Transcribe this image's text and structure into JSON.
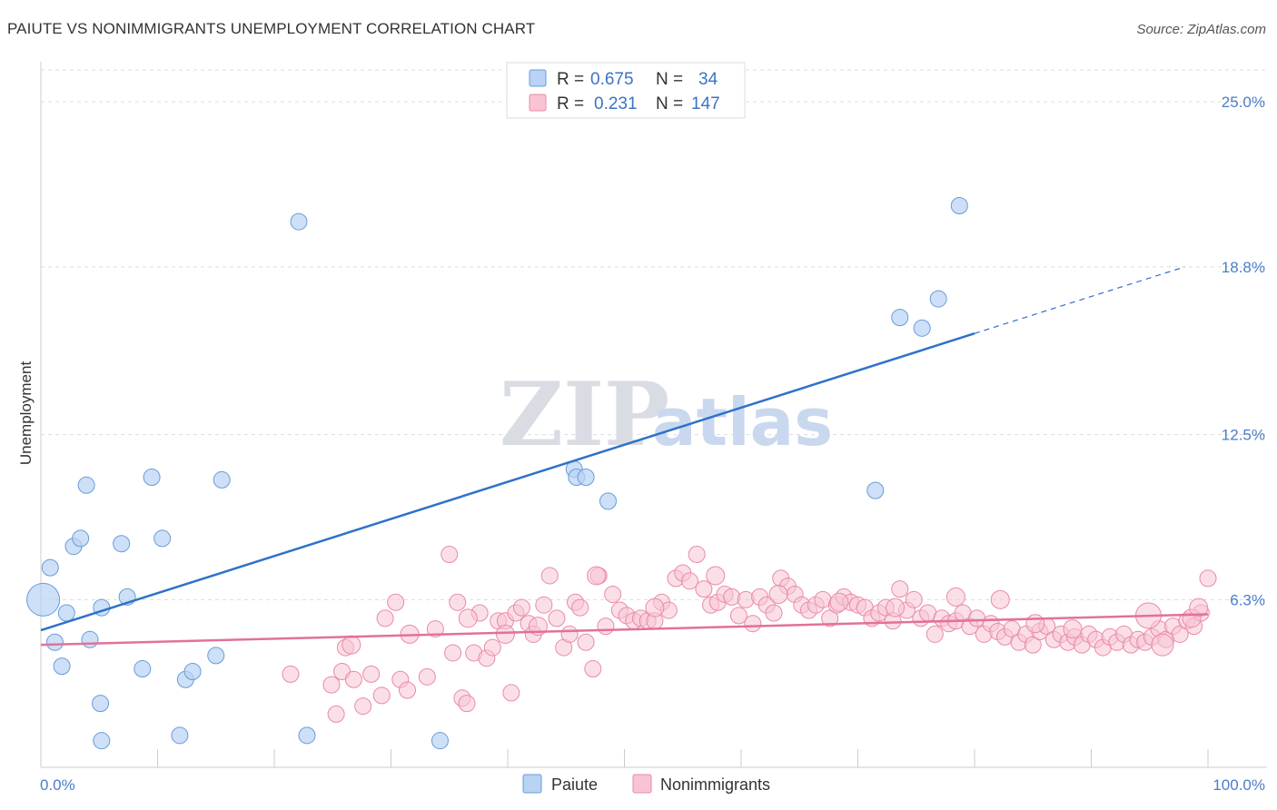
{
  "title": "PAIUTE VS NONIMMIGRANTS UNEMPLOYMENT CORRELATION CHART",
  "source": "Source: ZipAtlas.com",
  "watermark": {
    "zip": "ZIP",
    "atlas": "atlas"
  },
  "colors": {
    "paiute_fill": "#b8d3f3",
    "paiute_stroke": "#6a9bd8",
    "paiute_line": "#2e72c9",
    "nonimm_fill": "#f8c4d4",
    "nonimm_stroke": "#e98aa8",
    "nonimm_line": "#e2719a",
    "tick_color": "#4a7ec9",
    "grid": "#dddddd"
  },
  "legend": {
    "paiute": {
      "r_label": "R =",
      "r_value": "0.675",
      "n_label": "N =",
      "n_value": "34"
    },
    "nonimm": {
      "r_label": "R =",
      "r_value": "0.231",
      "n_label": "N =",
      "n_value": "147"
    }
  },
  "bottom_legend": {
    "paiute": "Paiute",
    "nonimm": "Nonimmigrants"
  },
  "chart_data": {
    "type": "scatter",
    "title": "PAIUTE VS NONIMMIGRANTS UNEMPLOYMENT CORRELATION CHART",
    "xlabel": "",
    "ylabel": "Unemployment",
    "xlim": [
      0,
      100
    ],
    "ylim": [
      0,
      26.2
    ],
    "x_tick_labels": [
      "0.0%",
      "100.0%"
    ],
    "y_ticks": [
      6.3,
      12.5,
      18.8,
      25.0
    ],
    "y_tick_labels": [
      "6.3%",
      "12.5%",
      "18.8%",
      "25.0%"
    ],
    "grid": true,
    "legend_position": "top-center",
    "series": [
      {
        "name": "Paiute",
        "points": [
          [
            0.2,
            6.3,
            18
          ],
          [
            0.8,
            7.5,
            9
          ],
          [
            1.2,
            4.7,
            9
          ],
          [
            1.8,
            3.8,
            9
          ],
          [
            2.2,
            5.8,
            9
          ],
          [
            2.8,
            8.3,
            9
          ],
          [
            3.4,
            8.6,
            9
          ],
          [
            3.9,
            10.6,
            9
          ],
          [
            4.2,
            4.8,
            9
          ],
          [
            5.1,
            2.4,
            9
          ],
          [
            5.2,
            1.0,
            9
          ],
          [
            5.2,
            6.0,
            9
          ],
          [
            6.9,
            8.4,
            9
          ],
          [
            7.4,
            6.4,
            9
          ],
          [
            8.7,
            3.7,
            9
          ],
          [
            9.5,
            10.9,
            9
          ],
          [
            10.4,
            8.6,
            9
          ],
          [
            11.9,
            1.2,
            9
          ],
          [
            12.4,
            3.3,
            9
          ],
          [
            13.0,
            3.6,
            9
          ],
          [
            15.0,
            4.2,
            9
          ],
          [
            15.5,
            10.8,
            9
          ],
          [
            22.1,
            20.5,
            9
          ],
          [
            22.8,
            1.2,
            9
          ],
          [
            34.2,
            1.0,
            9
          ],
          [
            45.7,
            11.2,
            9
          ],
          [
            45.9,
            10.9,
            9
          ],
          [
            46.7,
            10.9,
            9
          ],
          [
            48.6,
            10.0,
            9
          ],
          [
            71.5,
            10.4,
            9
          ],
          [
            73.6,
            16.9,
            9
          ],
          [
            75.5,
            16.5,
            9
          ],
          [
            76.9,
            17.6,
            9
          ],
          [
            78.7,
            21.1,
            9
          ]
        ],
        "trend": {
          "x1": 0,
          "y1": 5.15,
          "x2": 80,
          "y2": 16.3,
          "dash_x2": 98,
          "dash_y2": 18.8
        }
      },
      {
        "name": "Nonimmigrants",
        "points": [
          [
            21.4,
            3.5,
            9
          ],
          [
            24.9,
            3.1,
            9
          ],
          [
            25.3,
            2.0,
            9
          ],
          [
            25.8,
            3.6,
            9
          ],
          [
            26.1,
            4.5,
            9
          ],
          [
            26.8,
            3.3,
            9
          ],
          [
            27.6,
            2.3,
            9
          ],
          [
            28.3,
            3.5,
            9
          ],
          [
            29.2,
            2.7,
            9
          ],
          [
            29.5,
            5.6,
            9
          ],
          [
            30.4,
            6.2,
            9
          ],
          [
            30.8,
            3.3,
            9
          ],
          [
            31.4,
            2.9,
            9
          ],
          [
            33.1,
            3.4,
            9
          ],
          [
            33.8,
            5.2,
            9
          ],
          [
            35.0,
            8.0,
            9
          ],
          [
            35.3,
            4.3,
            9
          ],
          [
            35.7,
            6.2,
            9
          ],
          [
            36.1,
            2.6,
            9
          ],
          [
            36.5,
            2.4,
            9
          ],
          [
            37.1,
            4.3,
            9
          ],
          [
            37.6,
            5.8,
            9
          ],
          [
            38.2,
            4.1,
            9
          ],
          [
            38.7,
            4.5,
            9
          ],
          [
            39.2,
            5.5,
            9
          ],
          [
            39.8,
            5.5,
            9
          ],
          [
            40.3,
            2.8,
            9
          ],
          [
            40.7,
            5.8,
            9
          ],
          [
            41.2,
            6.0,
            9
          ],
          [
            41.8,
            5.4,
            9
          ],
          [
            42.2,
            5.0,
            9
          ],
          [
            43.1,
            6.1,
            9
          ],
          [
            43.6,
            7.2,
            9
          ],
          [
            44.2,
            5.6,
            9
          ],
          [
            44.8,
            4.5,
            9
          ],
          [
            45.3,
            5.0,
            9
          ],
          [
            45.8,
            6.2,
            9
          ],
          [
            46.2,
            6.0,
            9
          ],
          [
            46.7,
            4.7,
            9
          ],
          [
            47.3,
            3.7,
            9
          ],
          [
            47.8,
            7.2,
            9
          ],
          [
            48.4,
            5.3,
            9
          ],
          [
            49.0,
            6.5,
            9
          ],
          [
            49.6,
            5.9,
            9
          ],
          [
            50.2,
            5.7,
            9
          ],
          [
            50.8,
            5.5,
            9
          ],
          [
            51.4,
            5.6,
            9
          ],
          [
            52.0,
            5.5,
            9
          ],
          [
            52.6,
            5.5,
            9
          ],
          [
            53.2,
            6.2,
            9
          ],
          [
            53.8,
            5.9,
            9
          ],
          [
            54.4,
            7.1,
            9
          ],
          [
            55.0,
            7.3,
            9
          ],
          [
            55.6,
            7.0,
            9
          ],
          [
            56.2,
            8.0,
            9
          ],
          [
            56.8,
            6.7,
            9
          ],
          [
            57.4,
            6.1,
            9
          ],
          [
            58.0,
            6.2,
            9
          ],
          [
            58.6,
            6.5,
            9
          ],
          [
            59.2,
            6.4,
            9
          ],
          [
            59.8,
            5.7,
            9
          ],
          [
            60.4,
            6.3,
            9
          ],
          [
            61.0,
            5.4,
            9
          ],
          [
            61.6,
            6.4,
            9
          ],
          [
            62.2,
            6.1,
            9
          ],
          [
            62.8,
            5.8,
            9
          ],
          [
            63.4,
            7.1,
            9
          ],
          [
            64.0,
            6.8,
            9
          ],
          [
            64.6,
            6.5,
            9
          ],
          [
            65.2,
            6.1,
            9
          ],
          [
            65.8,
            5.9,
            9
          ],
          [
            66.4,
            6.1,
            9
          ],
          [
            67.0,
            6.3,
            9
          ],
          [
            67.6,
            5.6,
            9
          ],
          [
            68.2,
            6.1,
            9
          ],
          [
            68.8,
            6.4,
            9
          ],
          [
            69.4,
            6.2,
            9
          ],
          [
            70.0,
            6.1,
            9
          ],
          [
            70.6,
            6.0,
            9
          ],
          [
            71.2,
            5.6,
            9
          ],
          [
            71.8,
            5.8,
            9
          ],
          [
            72.4,
            6.0,
            9
          ],
          [
            73.0,
            5.5,
            9
          ],
          [
            73.6,
            6.7,
            9
          ],
          [
            74.2,
            5.9,
            9
          ],
          [
            74.8,
            6.3,
            9
          ],
          [
            75.4,
            5.6,
            9
          ],
          [
            76.0,
            5.8,
            9
          ],
          [
            76.6,
            5.0,
            9
          ],
          [
            77.2,
            5.6,
            9
          ],
          [
            77.8,
            5.4,
            9
          ],
          [
            78.4,
            5.5,
            9
          ],
          [
            79.0,
            5.8,
            9
          ],
          [
            79.6,
            5.3,
            9
          ],
          [
            80.2,
            5.6,
            9
          ],
          [
            80.8,
            5.0,
            9
          ],
          [
            81.4,
            5.4,
            9
          ],
          [
            82.0,
            5.1,
            9
          ],
          [
            82.6,
            4.9,
            9
          ],
          [
            83.2,
            5.2,
            9
          ],
          [
            83.8,
            4.7,
            9
          ],
          [
            84.4,
            5.0,
            9
          ],
          [
            85.0,
            4.6,
            9
          ],
          [
            85.6,
            5.1,
            9
          ],
          [
            86.2,
            5.3,
            9
          ],
          [
            86.8,
            4.8,
            9
          ],
          [
            87.4,
            5.0,
            9
          ],
          [
            88.0,
            4.7,
            9
          ],
          [
            88.6,
            4.9,
            9
          ],
          [
            89.2,
            4.6,
            9
          ],
          [
            89.8,
            5.0,
            9
          ],
          [
            90.4,
            4.8,
            9
          ],
          [
            91.0,
            4.5,
            9
          ],
          [
            91.6,
            4.9,
            9
          ],
          [
            92.2,
            4.7,
            9
          ],
          [
            92.8,
            5.0,
            9
          ],
          [
            93.4,
            4.6,
            9
          ],
          [
            94.0,
            4.8,
            9
          ],
          [
            94.6,
            4.7,
            9
          ],
          [
            95.2,
            4.9,
            9
          ],
          [
            95.8,
            5.2,
            9
          ],
          [
            96.4,
            4.8,
            9
          ],
          [
            97.0,
            5.3,
            9
          ],
          [
            97.6,
            5.0,
            9
          ],
          [
            98.2,
            5.5,
            9
          ],
          [
            98.8,
            5.3,
            9
          ],
          [
            99.4,
            5.8,
            9
          ],
          [
            100.0,
            7.1,
            9
          ],
          [
            94.9,
            5.7,
            14
          ],
          [
            96.1,
            4.6,
            12
          ],
          [
            98.6,
            5.6,
            10
          ],
          [
            99.2,
            6.0,
            10
          ],
          [
            85.2,
            5.4,
            10
          ],
          [
            88.4,
            5.2,
            10
          ],
          [
            82.2,
            6.3,
            10
          ],
          [
            78.4,
            6.4,
            10
          ],
          [
            73.2,
            6.0,
            10
          ],
          [
            68.4,
            6.2,
            10
          ],
          [
            63.2,
            6.5,
            10
          ],
          [
            57.8,
            7.2,
            10
          ],
          [
            52.6,
            6.0,
            10
          ],
          [
            47.6,
            7.2,
            10
          ],
          [
            42.6,
            5.3,
            10
          ],
          [
            39.8,
            5.0,
            10
          ],
          [
            36.6,
            5.6,
            10
          ],
          [
            31.6,
            5.0,
            10
          ],
          [
            26.6,
            4.6,
            10
          ]
        ],
        "trend": {
          "x1": 0,
          "y1": 4.6,
          "x2": 100,
          "y2": 5.75
        }
      }
    ]
  }
}
